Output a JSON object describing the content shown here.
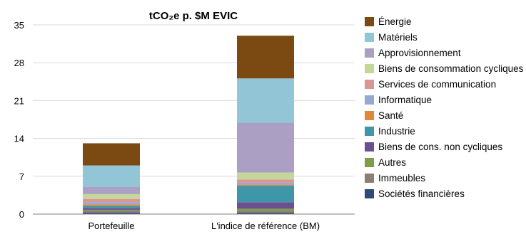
{
  "chart_data": {
    "type": "bar",
    "stacked": true,
    "title": "tCO₂e p. $M EVIC",
    "xlabel": "",
    "ylabel": "",
    "ylim": [
      0,
      35
    ],
    "yticks": [
      0,
      7,
      14,
      21,
      28,
      35
    ],
    "categories": [
      "Portefeuille",
      "L'indice de référence (BM)"
    ],
    "series": [
      {
        "name": "Sociétés financières",
        "color": "#2E4A7D",
        "values": [
          0.3,
          0.3
        ]
      },
      {
        "name": "Immeubles",
        "color": "#8C7F72",
        "values": [
          0.3,
          0.3
        ]
      },
      {
        "name": "Autres",
        "color": "#7F9C4A",
        "values": [
          0.2,
          0.4
        ]
      },
      {
        "name": "Biens de cons. non cycliques",
        "color": "#6B4F8F",
        "values": [
          0.3,
          1.2
        ]
      },
      {
        "name": "Industrie",
        "color": "#3F96A8",
        "values": [
          0.4,
          3.0
        ]
      },
      {
        "name": "Santé",
        "color": "#E0873A",
        "values": [
          0.3,
          0.2
        ]
      },
      {
        "name": "Informatique",
        "color": "#95A9D1",
        "values": [
          0.4,
          0.4
        ]
      },
      {
        "name": "Services de communication",
        "color": "#D99694",
        "values": [
          0.6,
          0.6
        ]
      },
      {
        "name": "Biens de consommation cycliques",
        "color": "#C4D79B",
        "values": [
          0.9,
          1.3
        ]
      },
      {
        "name": "Approvisionnement",
        "color": "#ABA0C4",
        "values": [
          1.3,
          9.2
        ]
      },
      {
        "name": "Matériels",
        "color": "#92C6D6",
        "values": [
          4.0,
          8.2
        ]
      },
      {
        "name": "Énergie",
        "color": "#7A4A12",
        "values": [
          4.1,
          7.9
        ]
      }
    ],
    "grid": "horizontal",
    "legend_position": "right"
  }
}
